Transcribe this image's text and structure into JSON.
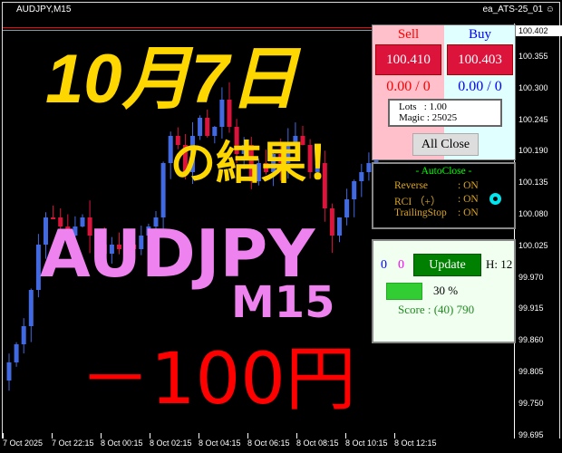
{
  "window": {
    "symbol_title": "AUDJPY,M15",
    "ea_name": "ea_ATS-25_01",
    "ea_icon": "smiley-icon"
  },
  "price_axis": {
    "current": "100.402",
    "labels": [
      "100.355",
      "100.300",
      "100.245",
      "100.190",
      "100.135",
      "100.080",
      "100.025",
      "99.970",
      "99.915",
      "99.860",
      "99.805",
      "99.750",
      "99.695"
    ]
  },
  "time_axis": [
    "7 Oct 2025",
    "7 Oct 22:15",
    "8 Oct 00:15",
    "8 Oct 02:15",
    "8 Oct 04:15",
    "8 Oct 06:15",
    "8 Oct 08:15",
    "8 Oct 10:15",
    "8 Oct 12:15"
  ],
  "overlay": {
    "date": "10月7日",
    "result": "の結果！",
    "pair": "AUDJPY",
    "timeframe": "M15",
    "profit": "－100円"
  },
  "panel": {
    "sell_label": "Sell",
    "buy_label": "Buy",
    "sell_price": "100.410",
    "buy_price": "100.403",
    "sell_pl": "0.00 / 0",
    "buy_pl": "0.00 / 0",
    "lots": "Lots   : 1.00",
    "magic": "Magic : 25025",
    "all_close": "All Close",
    "autoclose_title": "- AutoClose -",
    "autoclose": [
      {
        "name": "Reverse",
        "value": ": ON"
      },
      {
        "name": "RCI （+）",
        "value": ": ON"
      },
      {
        "name": "TrailingStop",
        "value": ": ON"
      }
    ],
    "status_icon": "ring-icon",
    "count_blue": "0",
    "count_magenta": "0",
    "update": "Update",
    "hours": "H: 12",
    "progress_percent": 30,
    "progress_label": "30 %",
    "score": "Score : (40) 790"
  },
  "colors": {
    "bull": "#4169e1",
    "bear": "#dc143c",
    "sell_bg": "#ffc0cb",
    "buy_bg": "#e0ffff"
  }
}
